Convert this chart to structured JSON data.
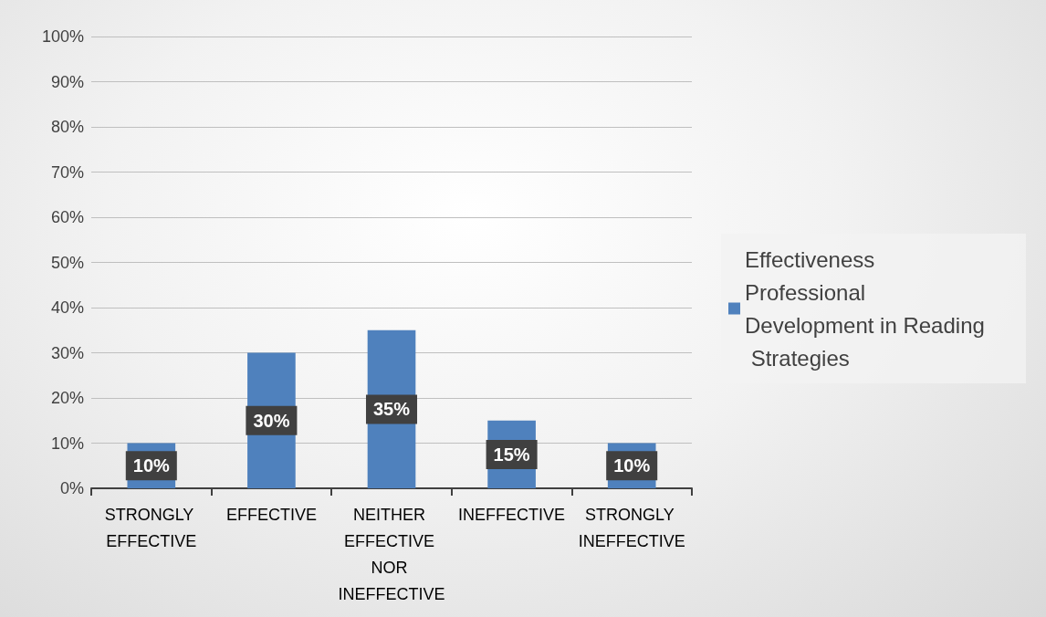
{
  "chart_data": {
    "type": "bar",
    "categories": [
      "STRONGLY EFFECTIVE",
      "EFFECTIVE",
      "NEITHER EFFECTIVE NOR INEFFECTIVE",
      "INEFFECTIVE",
      "STRONGLY INEFFECTIVE"
    ],
    "series": [
      {
        "name": "Effectiveness Professional Development in Reading Strategies",
        "color": "#4f81bd",
        "values": [
          10,
          30,
          35,
          15,
          10
        ],
        "value_labels": [
          "10%",
          "30%",
          "35%",
          "15%",
          "10%"
        ]
      }
    ],
    "ylim": [
      0,
      100
    ],
    "yticks": [
      {
        "value": 0,
        "label": "0%"
      },
      {
        "value": 10,
        "label": "10%"
      },
      {
        "value": 20,
        "label": "20%"
      },
      {
        "value": 30,
        "label": "30%"
      },
      {
        "value": 40,
        "label": "40%"
      },
      {
        "value": 50,
        "label": "50%"
      },
      {
        "value": 60,
        "label": "60%"
      },
      {
        "value": 70,
        "label": "70%"
      },
      {
        "value": 80,
        "label": "80%"
      },
      {
        "value": 90,
        "label": "90%"
      },
      {
        "value": 100,
        "label": "100%"
      }
    ],
    "grid": "y",
    "legend": "right"
  }
}
